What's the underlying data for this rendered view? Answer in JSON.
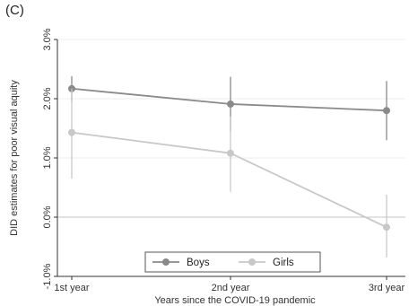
{
  "panel_label": "(C)",
  "chart_data": {
    "type": "line",
    "title": "",
    "xlabel": "Years since the COVID-19 pandemic",
    "ylabel": "DID estimates for poor visual aquity",
    "categories": [
      "1st year",
      "2nd year",
      "3rd year"
    ],
    "ylim": [
      -1.0,
      3.0
    ],
    "y_ticks": [
      -1.0,
      0.0,
      1.0,
      2.0,
      3.0
    ],
    "y_tick_labels": [
      "-1.0%",
      "0.0%",
      "1.0%",
      "2.0%",
      "3.0%"
    ],
    "y_tick_label_rotation": "vertical",
    "reference_line": 0.0,
    "grid": "horizontal",
    "legend_position": "bottom-center",
    "series": [
      {
        "name": "Boys",
        "color": "#8a8a8a",
        "values": [
          2.17,
          1.91,
          1.8
        ],
        "ci_low": [
          1.95,
          1.45,
          1.3
        ],
        "ci_high": [
          2.38,
          2.37,
          2.3
        ]
      },
      {
        "name": "Girls",
        "color": "#c8c8c8",
        "values": [
          1.43,
          1.08,
          -0.17
        ],
        "ci_low": [
          0.65,
          0.43,
          -0.68
        ],
        "ci_high": [
          2.17,
          1.7,
          0.38
        ]
      }
    ]
  }
}
